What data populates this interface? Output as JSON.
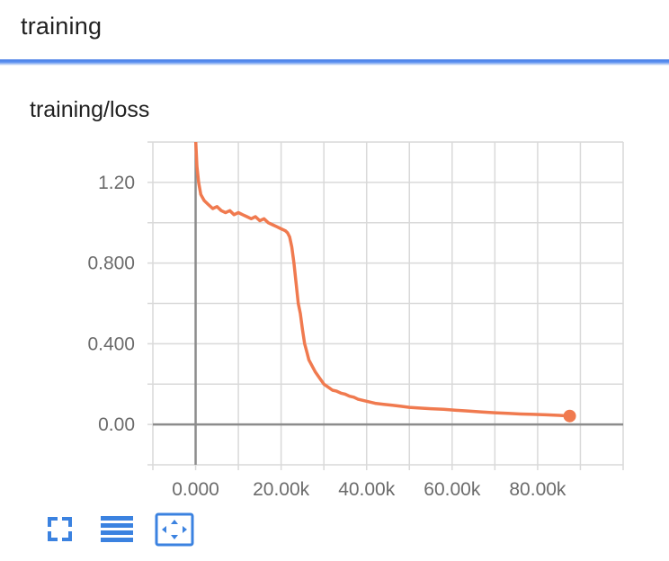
{
  "header": {
    "title": "training"
  },
  "card": {
    "title": "training/loss"
  },
  "colors": {
    "accent": "#4a7fe6",
    "series": "#f07a4f",
    "grid": "#d9d9d9",
    "axis": "#8c8c8c",
    "tick_text": "#6b6b6b",
    "toolbar_icon": "#3b82e0"
  },
  "toolbar": {
    "buttons": [
      {
        "icon": "fullscreen-icon"
      },
      {
        "icon": "list-icon"
      },
      {
        "icon": "fit-domain-icon"
      }
    ]
  },
  "chart_data": {
    "type": "line",
    "title": "",
    "xlabel": "",
    "ylabel": "",
    "xlim": [
      -10000,
      100000
    ],
    "ylim": [
      -0.2,
      1.4
    ],
    "x_ticks": [
      0,
      20000,
      40000,
      60000,
      80000
    ],
    "x_tick_labels": [
      "0.000",
      "20.00k",
      "40.00k",
      "60.00k",
      "80.00k"
    ],
    "y_ticks": [
      0.0,
      0.4,
      0.8,
      1.2
    ],
    "y_tick_labels": [
      "0.00",
      "0.400",
      "0.800",
      "1.20"
    ],
    "grid": true,
    "legend": "none",
    "series": [
      {
        "x": [
          0,
          300,
          700,
          1200,
          2000,
          3000,
          4000,
          5000,
          6000,
          7000,
          8000,
          9000,
          10000,
          11000,
          12000,
          13000,
          14000,
          15000,
          16000,
          17000,
          18000,
          19000,
          20000,
          21000,
          21500,
          22000,
          22500,
          23000,
          23500,
          24000,
          24500,
          25000,
          25500,
          26000,
          26500,
          27000,
          27500,
          28000,
          29000,
          30000,
          31000,
          32000,
          33000,
          34000,
          35000,
          36000,
          37000,
          38000,
          40000,
          42000,
          44000,
          46000,
          48000,
          50000,
          52000,
          55000,
          58000,
          61000,
          64000,
          67000,
          70000,
          73000,
          76000,
          79000,
          82000,
          85000,
          87500
        ],
        "y": [
          1.42,
          1.28,
          1.2,
          1.14,
          1.11,
          1.09,
          1.07,
          1.08,
          1.06,
          1.05,
          1.06,
          1.04,
          1.05,
          1.04,
          1.03,
          1.02,
          1.03,
          1.01,
          1.02,
          1.0,
          0.99,
          0.98,
          0.97,
          0.96,
          0.95,
          0.93,
          0.88,
          0.8,
          0.7,
          0.6,
          0.55,
          0.47,
          0.4,
          0.36,
          0.32,
          0.3,
          0.28,
          0.26,
          0.23,
          0.2,
          0.185,
          0.17,
          0.165,
          0.155,
          0.15,
          0.14,
          0.135,
          0.125,
          0.115,
          0.105,
          0.1,
          0.095,
          0.09,
          0.085,
          0.082,
          0.078,
          0.075,
          0.07,
          0.066,
          0.062,
          0.058,
          0.055,
          0.052,
          0.05,
          0.048,
          0.045,
          0.042
        ]
      }
    ]
  }
}
